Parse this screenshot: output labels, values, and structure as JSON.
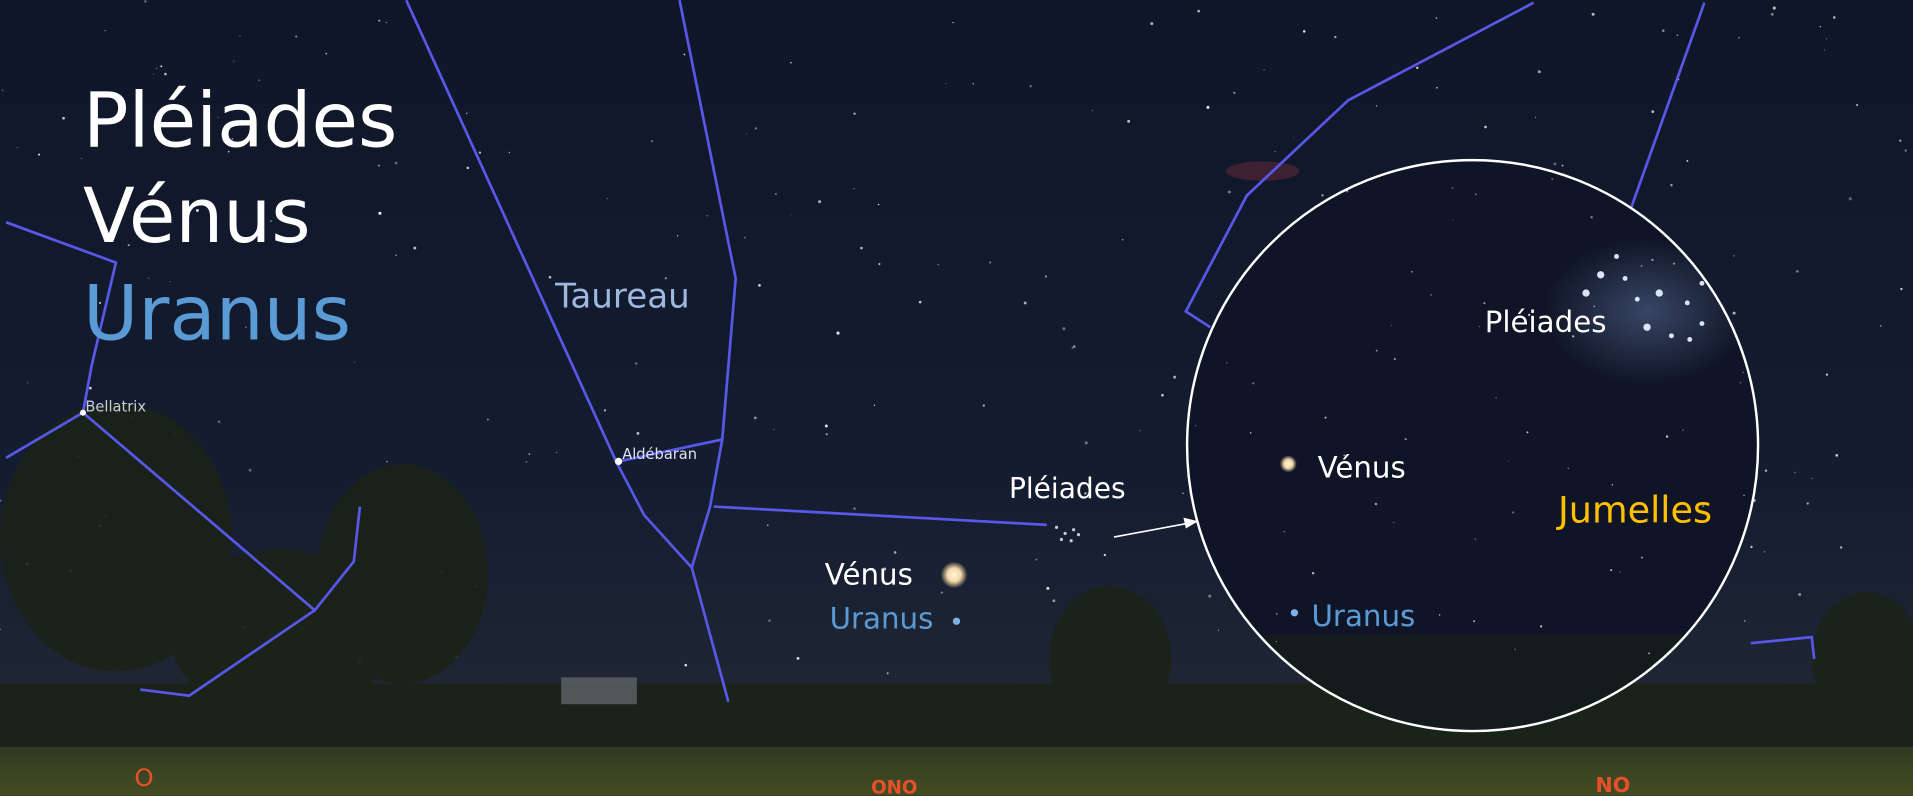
{
  "title": [
    "Pléiades",
    "Vénus",
    "Uranus"
  ],
  "constellation": "Taureau",
  "stars": [
    "Bellatrix",
    "Aldébaran"
  ],
  "sky_labels": {
    "pleiades": "Pléiades",
    "venus": "Vénus",
    "uranus": "Uranus"
  },
  "inset": {
    "pleiades": "Pléiades",
    "venus": "Vénus",
    "uranus": "Uranus",
    "instrument": "Jumelles"
  },
  "directions": [
    "O",
    "ONO",
    "NO"
  ]
}
